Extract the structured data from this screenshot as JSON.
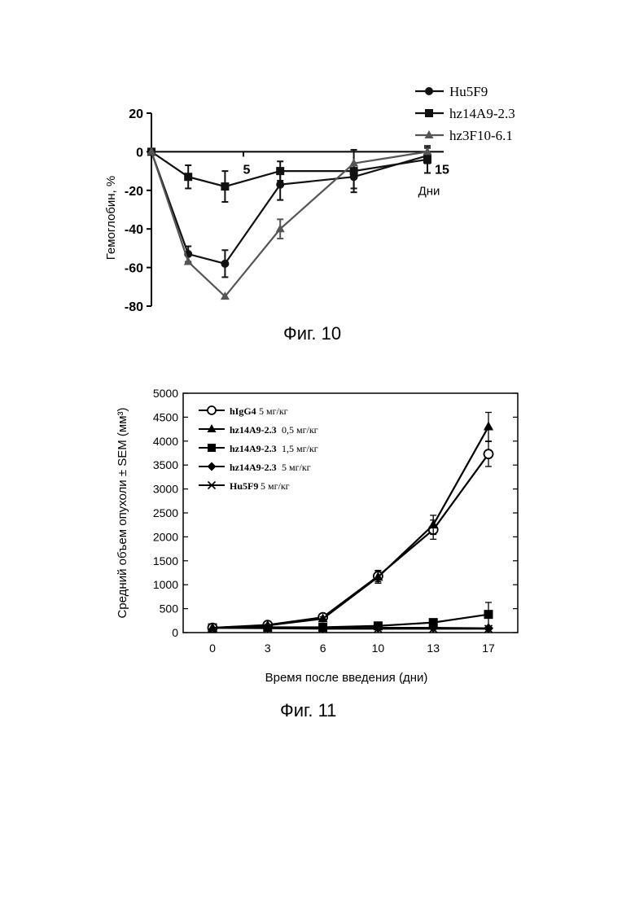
{
  "figures": [
    {
      "caption": "Фиг. 10",
      "chart_data": {
        "type": "line",
        "xlabel": "Дни",
        "ylabel": "Гемоглобин, %",
        "xlim": [
          0,
          15
        ],
        "ylim": [
          -80,
          20
        ],
        "x_ticks": [
          5,
          15
        ],
        "y_ticks": [
          20,
          0,
          -20,
          -40,
          -60,
          -80
        ],
        "grid": false,
        "legend_position": "top-right",
        "series": [
          {
            "name": "Hu5F9",
            "marker": "circle",
            "color": "#111111",
            "x": [
              0,
              2,
              4,
              7,
              11,
              15
            ],
            "y": [
              0,
              -53,
              -58,
              -17,
              -13,
              -2
            ],
            "err": [
              0,
              4,
              7,
              8,
              6,
              4
            ]
          },
          {
            "name": "hz14A9-2.3",
            "marker": "square",
            "color": "#111111",
            "x": [
              0,
              2,
              4,
              7,
              11,
              15
            ],
            "y": [
              0,
              -13,
              -18,
              -10,
              -10,
              -4
            ],
            "err": [
              0,
              6,
              8,
              5,
              11,
              7
            ]
          },
          {
            "name": "hz3F10-6.1",
            "marker": "triangle",
            "color": "#555555",
            "x": [
              0,
              2,
              4,
              7,
              11,
              15
            ],
            "y": [
              0,
              -57,
              -75,
              -40,
              -6,
              0
            ],
            "err": [
              0,
              0,
              0,
              5,
              0,
              0
            ]
          }
        ]
      }
    },
    {
      "caption": "Фиг. 11",
      "chart_data": {
        "type": "line",
        "xlabel": "Время после введения (дни)",
        "ylabel": "Средний объем опухоли ± SEM (мм³)",
        "categories": [
          "0",
          "3",
          "6",
          "10",
          "13",
          "17"
        ],
        "ylim": [
          0,
          5000
        ],
        "y_ticks": [
          0,
          500,
          1000,
          1500,
          2000,
          2500,
          3000,
          3500,
          4000,
          4500,
          5000
        ],
        "grid": false,
        "legend_position": "top-left",
        "series": [
          {
            "name": "hIgG4",
            "dose": "5 мг/кг",
            "marker": "open-circle",
            "values": [
              100,
              160,
              320,
              1180,
              2150,
              3730
            ],
            "err": [
              0,
              20,
              40,
              120,
              200,
              260
            ]
          },
          {
            "name": "hz14A9-2.3",
            "dose": "0,5 мг/кг",
            "marker": "triangle",
            "values": [
              100,
              150,
              290,
              1160,
              2250,
              4300
            ],
            "err": [
              0,
              20,
              40,
              130,
              200,
              300
            ]
          },
          {
            "name": "hz14A9-2.3",
            "dose": "1,5 мг/кг",
            "marker": "square",
            "values": [
              100,
              110,
              110,
              140,
              210,
              380
            ],
            "err": [
              0,
              10,
              15,
              25,
              50,
              250
            ]
          },
          {
            "name": "hz14A9-2.3",
            "dose": "5 мг/кг",
            "marker": "diamond",
            "values": [
              100,
              100,
              90,
              100,
              100,
              90
            ],
            "err": [
              0,
              0,
              0,
              0,
              0,
              0
            ]
          },
          {
            "name": "Hu5F9",
            "dose": "5 мг/кг",
            "marker": "x",
            "values": [
              100,
              90,
              80,
              80,
              80,
              80
            ],
            "err": [
              0,
              0,
              0,
              0,
              0,
              0
            ]
          }
        ]
      }
    }
  ]
}
